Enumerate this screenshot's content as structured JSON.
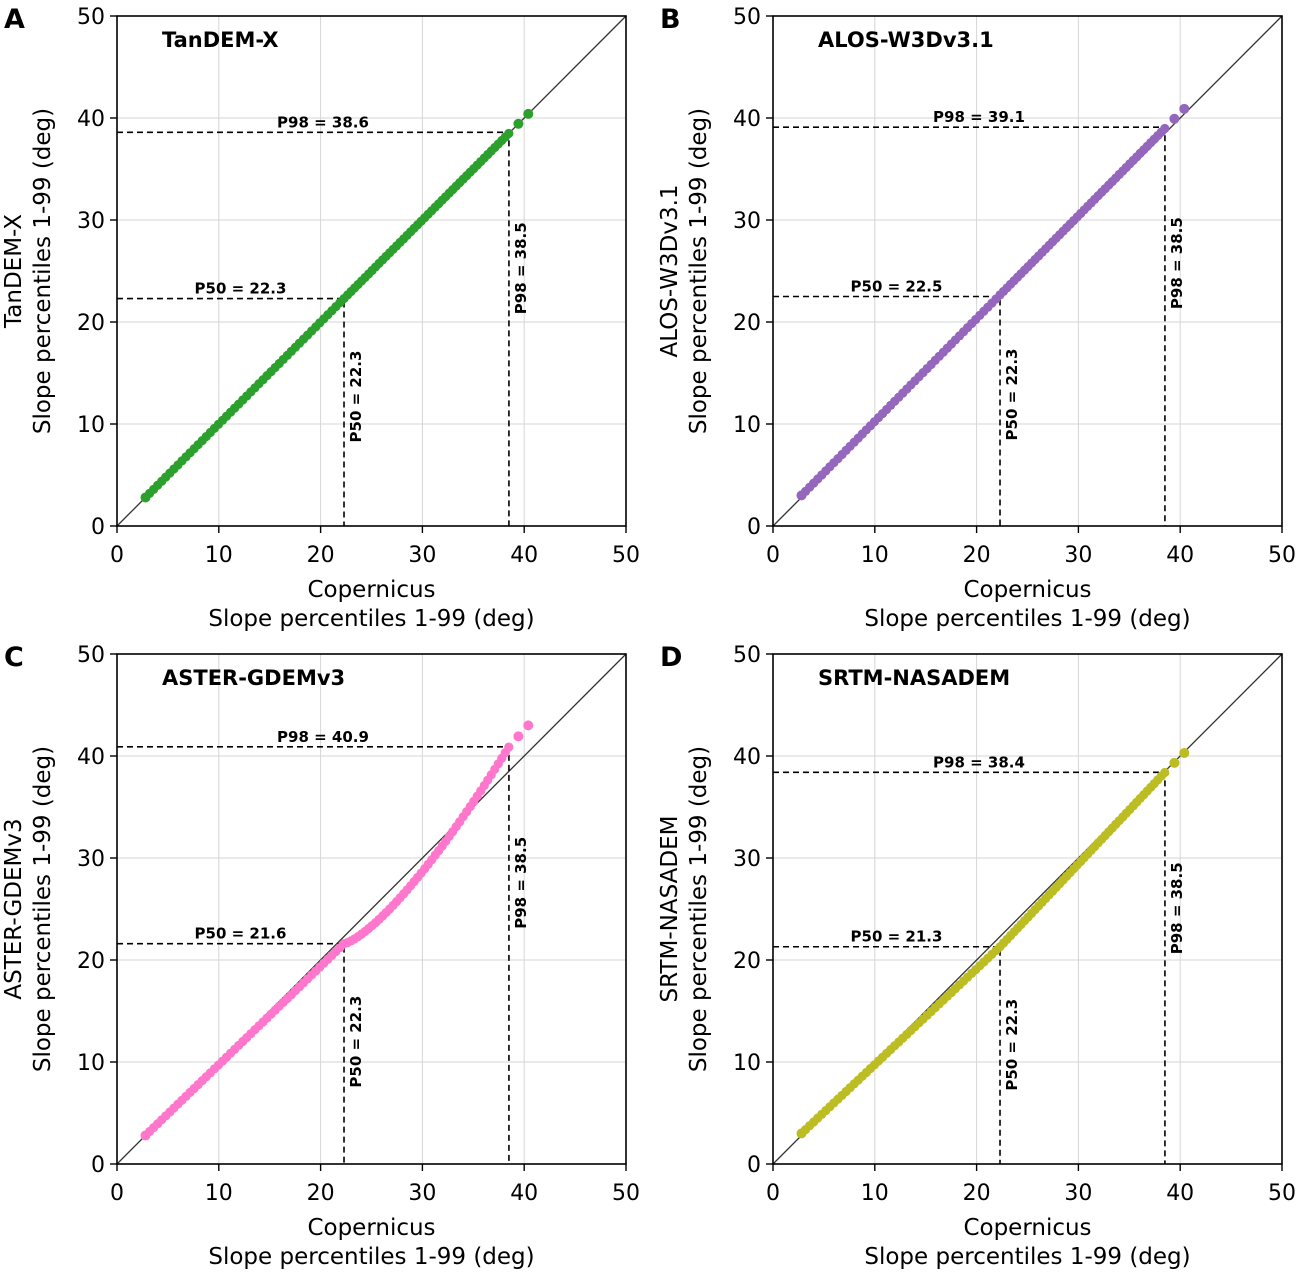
{
  "figure": {
    "chart_data": [
      {
        "type": "scatter",
        "panel_letter": "A",
        "title": "TanDEM-X",
        "xlabel_line1": "Copernicus",
        "xlabel_line2": "Slope percentiles 1-99 (deg)",
        "ylabel_line1": "TanDEM-X",
        "ylabel_line2": "Slope percentiles 1-99 (deg)",
        "xlim": [
          0,
          50
        ],
        "ylim": [
          0,
          50
        ],
        "xticks": [
          0,
          10,
          20,
          30,
          40,
          50
        ],
        "yticks": [
          0,
          10,
          20,
          30,
          40,
          50
        ],
        "grid": true,
        "marker_color": "#2ca02c",
        "x_range": [
          2.8,
          40.4
        ],
        "y_range": [
          2.8,
          40.4
        ],
        "curve": "linear",
        "n_points": 99,
        "p50": {
          "x": 22.3,
          "y": 22.3,
          "label_h": "P50 = 22.3",
          "label_v": "P50 = 22.3"
        },
        "p98": {
          "x": 38.5,
          "y": 38.6,
          "label_h": "P98 = 38.6",
          "label_v": "P98 = 38.5"
        }
      },
      {
        "type": "scatter",
        "panel_letter": "B",
        "title": "ALOS-W3Dv3.1",
        "xlabel_line1": "Copernicus",
        "xlabel_line2": "Slope percentiles 1-99 (deg)",
        "ylabel_line1": "ALOS-W3Dv3.1",
        "ylabel_line2": "Slope percentiles 1-99 (deg)",
        "xlim": [
          0,
          50
        ],
        "ylim": [
          0,
          50
        ],
        "xticks": [
          0,
          10,
          20,
          30,
          40,
          50
        ],
        "yticks": [
          0,
          10,
          20,
          30,
          40,
          50
        ],
        "grid": true,
        "marker_color": "#9467bd",
        "x_range": [
          2.8,
          40.4
        ],
        "y_range": [
          3.0,
          40.9
        ],
        "curve": "linear",
        "n_points": 99,
        "p50": {
          "x": 22.3,
          "y": 22.5,
          "label_h": "P50 = 22.5",
          "label_v": "P50 = 22.3"
        },
        "p98": {
          "x": 38.5,
          "y": 39.1,
          "label_h": "P98 = 39.1",
          "label_v": "P98 = 38.5"
        }
      },
      {
        "type": "scatter",
        "panel_letter": "C",
        "title": "ASTER-GDEMv3",
        "xlabel_line1": "Copernicus",
        "xlabel_line2": "Slope percentiles 1-99 (deg)",
        "ylabel_line1": "ASTER-GDEMv3",
        "ylabel_line2": "Slope percentiles 1-99 (deg)",
        "xlim": [
          0,
          50
        ],
        "ylim": [
          0,
          50
        ],
        "xticks": [
          0,
          10,
          20,
          30,
          40,
          50
        ],
        "yticks": [
          0,
          10,
          20,
          30,
          40,
          50
        ],
        "grid": true,
        "marker_color": "#ff77cc",
        "x_range": [
          2.8,
          40.4
        ],
        "y_range": [
          2.8,
          43.0
        ],
        "curve": "convex",
        "n_points": 99,
        "p50": {
          "x": 22.3,
          "y": 21.6,
          "label_h": "P50 = 21.6",
          "label_v": "P50 = 22.3"
        },
        "p98": {
          "x": 38.5,
          "y": 40.9,
          "label_h": "P98 = 40.9",
          "label_v": "P98 = 38.5"
        }
      },
      {
        "type": "scatter",
        "panel_letter": "D",
        "title": "SRTM-NASADEM",
        "xlabel_line1": "Copernicus",
        "xlabel_line2": "Slope percentiles 1-99 (deg)",
        "ylabel_line1": "SRTM-NASADEM",
        "ylabel_line2": "Slope percentiles 1-99 (deg)",
        "xlim": [
          0,
          50
        ],
        "ylim": [
          0,
          50
        ],
        "xticks": [
          0,
          10,
          20,
          30,
          40,
          50
        ],
        "yticks": [
          0,
          10,
          20,
          30,
          40,
          50
        ],
        "grid": true,
        "marker_color": "#bcbd22",
        "x_range": [
          2.8,
          40.4
        ],
        "y_range": [
          3.0,
          40.3
        ],
        "curve": "bowed",
        "n_points": 99,
        "p50": {
          "x": 22.3,
          "y": 21.3,
          "label_h": "P50 = 21.3",
          "label_v": "P50 = 22.3"
        },
        "p98": {
          "x": 38.5,
          "y": 38.4,
          "label_h": "P98 = 38.4",
          "label_v": "P98 = 38.5"
        }
      }
    ]
  }
}
